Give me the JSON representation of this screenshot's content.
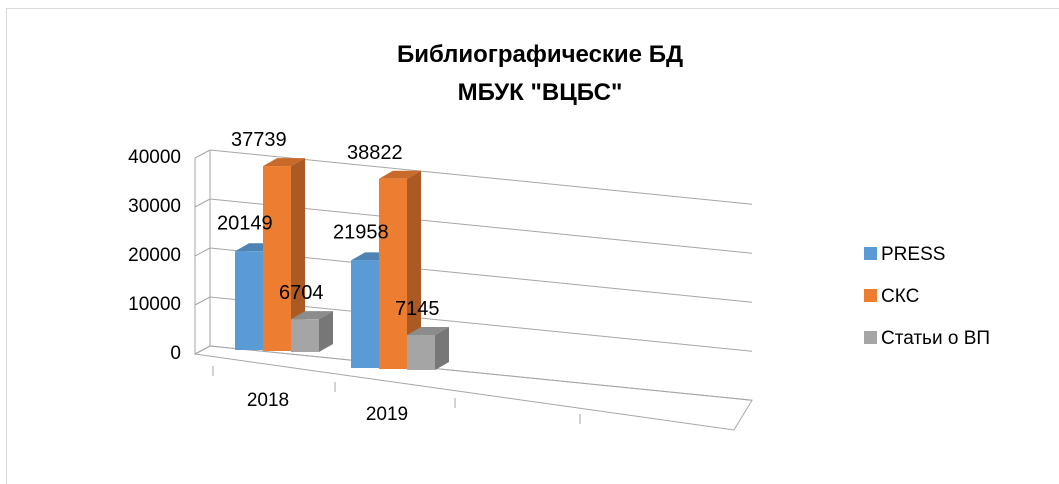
{
  "chart_data": {
    "type": "bar",
    "title": [
      "Библиографические БД",
      "МБУК \"ВЦБС\""
    ],
    "categories": [
      "2018",
      "2019"
    ],
    "series": [
      {
        "name": "PRESS",
        "values": [
          20149,
          21958
        ],
        "color": "#5b9bd5"
      },
      {
        "name": "СКС",
        "values": [
          37739,
          38822
        ],
        "color": "#ed7d31"
      },
      {
        "name": "Статьи о ВП",
        "values": [
          6704,
          7145
        ],
        "color": "#a5a5a5"
      }
    ],
    "ylim": [
      0,
      40000
    ],
    "yticks": [
      0,
      10000,
      20000,
      30000,
      40000
    ],
    "grid": true,
    "legend": "right",
    "style": "3d-clustered"
  }
}
